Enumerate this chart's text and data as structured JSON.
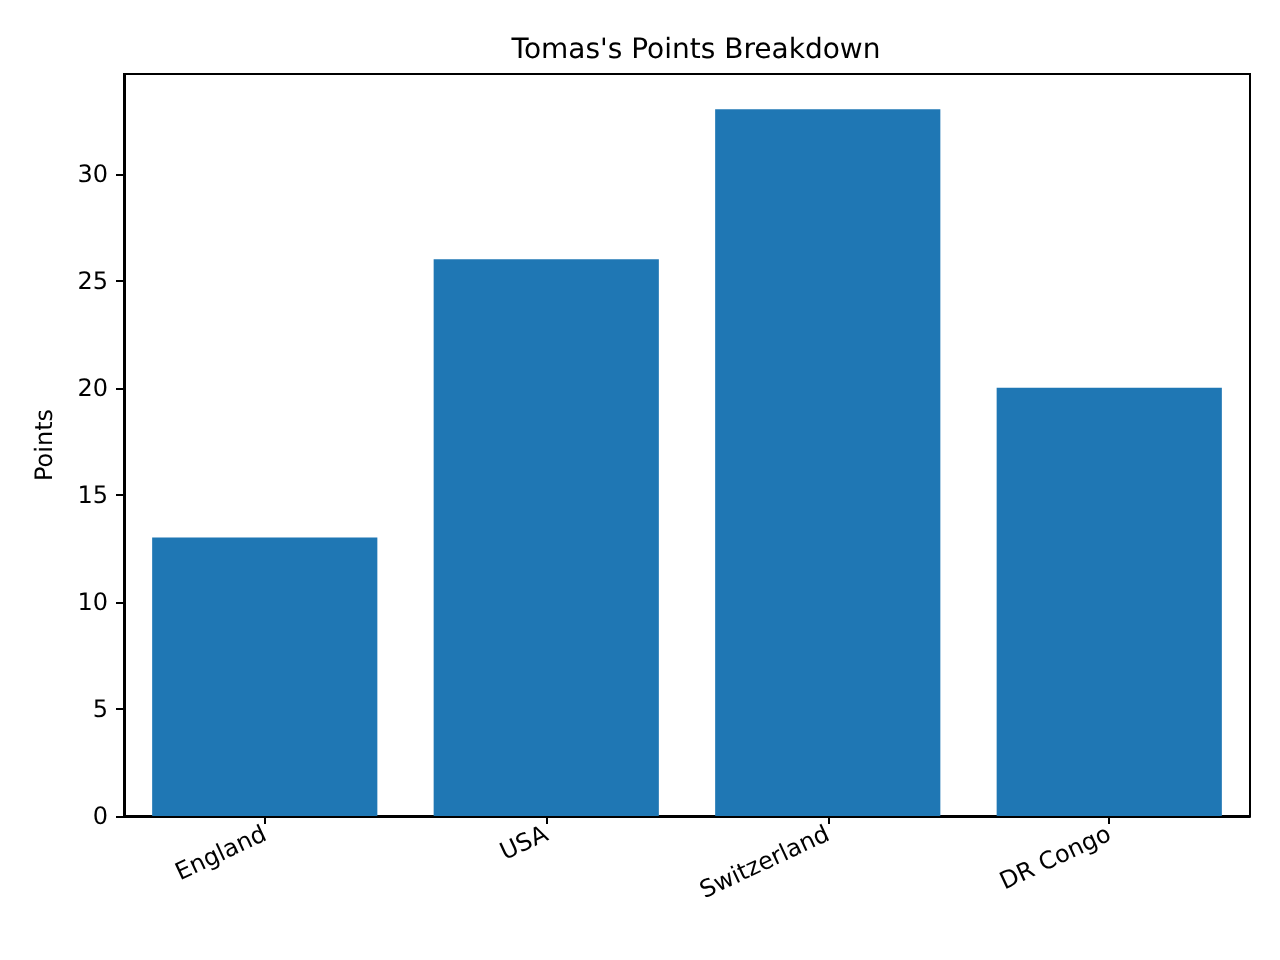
{
  "chart_data": {
    "type": "bar",
    "title": "Tomas's Points Breakdown",
    "ylabel": "Points",
    "categories": [
      "England",
      "USA",
      "Switzerland",
      "DR Congo"
    ],
    "values": [
      13,
      26,
      33,
      20
    ],
    "color": "#1f77b4",
    "ylim": [
      0,
      34.65
    ],
    "yticks": [
      0,
      5,
      10,
      15,
      20,
      25,
      30
    ],
    "grid": false
  }
}
